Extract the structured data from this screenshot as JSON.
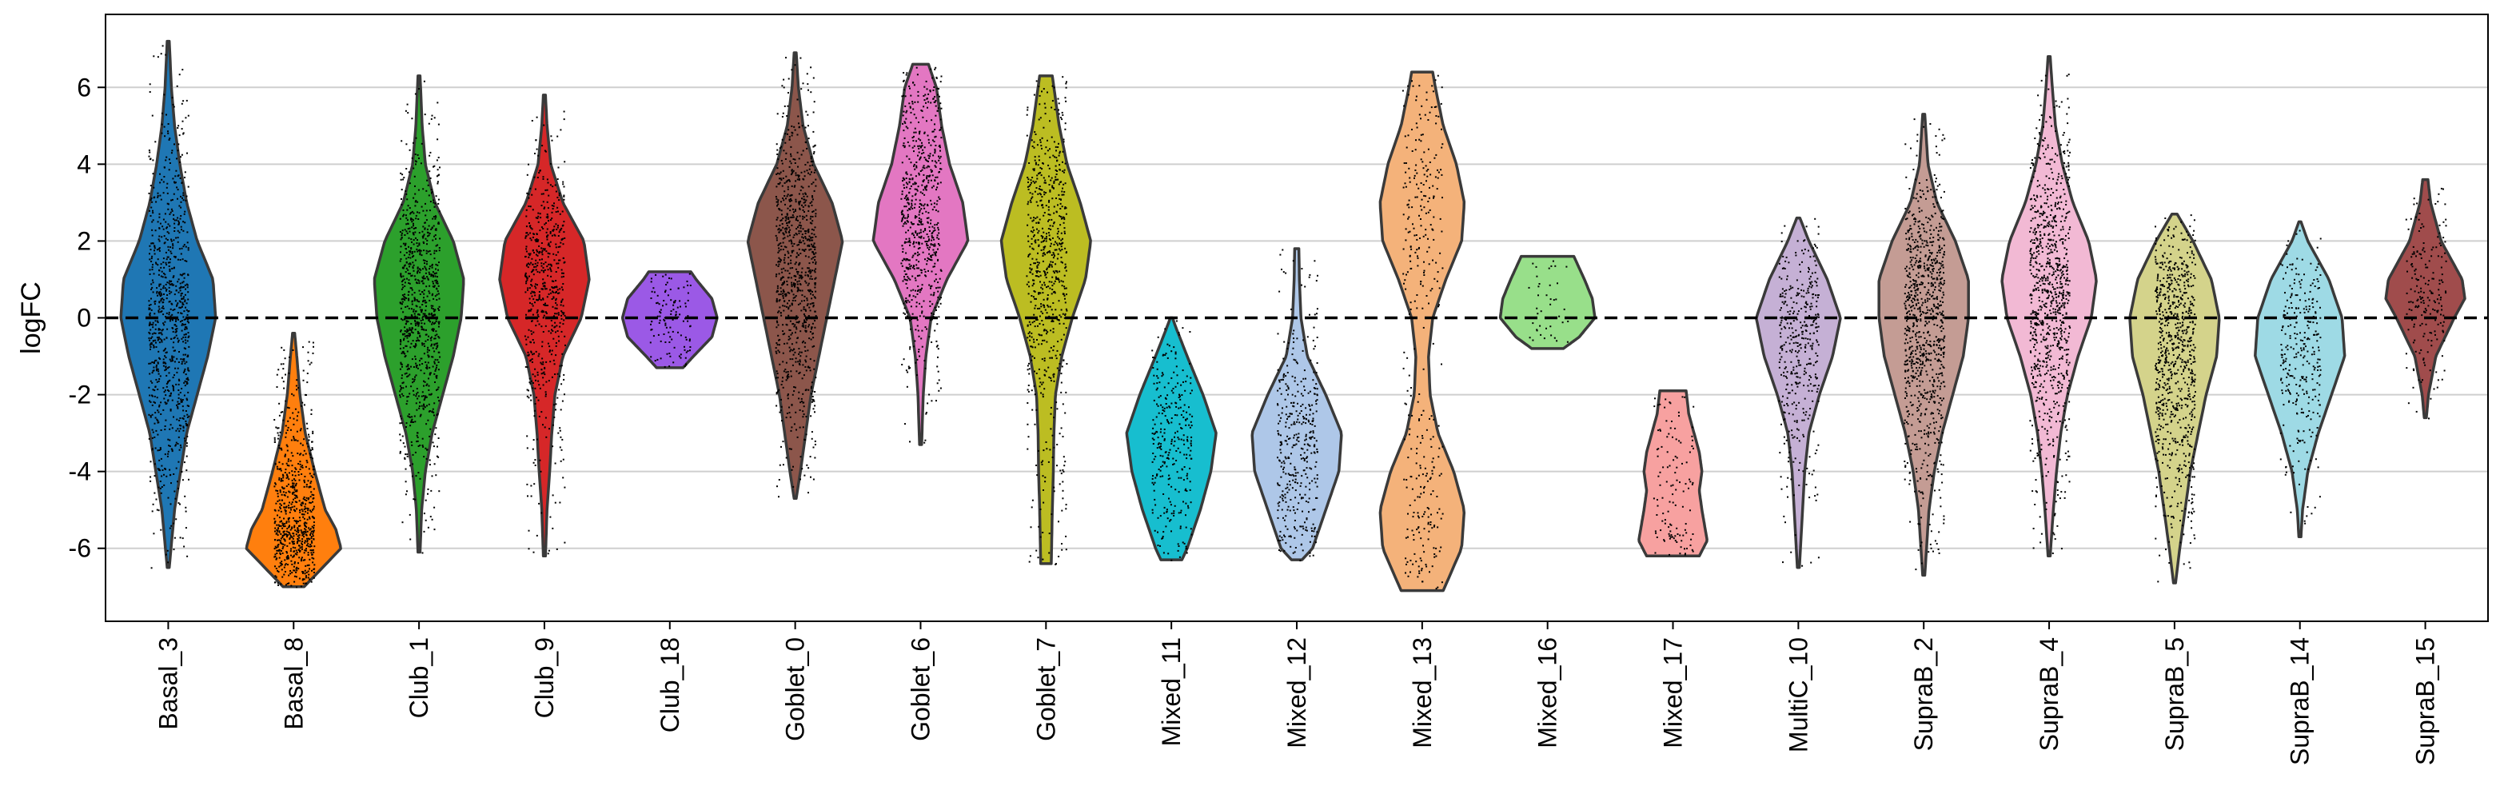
{
  "chart_data": {
    "type": "violin",
    "ylabel": "logFC",
    "ylim": [
      -7.9,
      7.9
    ],
    "yticks": [
      -6,
      -4,
      -2,
      0,
      2,
      4,
      6
    ],
    "grid": "horizontal",
    "reference_line": 0,
    "categories": [
      "Basal_3",
      "Basal_8",
      "Club_1",
      "Club_9",
      "Club_18",
      "Goblet_0",
      "Goblet_6",
      "Goblet_7",
      "Mixed_11",
      "Mixed_12",
      "Mixed_13",
      "Mixed_16",
      "Mixed_17",
      "MultiC_10",
      "SupraB_2",
      "SupraB_4",
      "SupraB_5",
      "SupraB_14",
      "SupraB_15"
    ],
    "series": [
      {
        "color": "#1f77b4",
        "min": -6.5,
        "max": 7.2,
        "width_profile": [
          [
            -6.5,
            0.02
          ],
          [
            -5,
            0.12
          ],
          [
            -3,
            0.35
          ],
          [
            -1,
            0.75
          ],
          [
            0,
            0.9
          ],
          [
            1,
            0.85
          ],
          [
            2,
            0.55
          ],
          [
            3,
            0.35
          ],
          [
            4,
            0.22
          ],
          [
            5,
            0.12
          ],
          [
            6,
            0.06
          ],
          [
            7.2,
            0.02
          ]
        ],
        "points": 900
      },
      {
        "color": "#ff7f0e",
        "min": -7.0,
        "max": -0.4,
        "width_profile": [
          [
            -7.0,
            0.2
          ],
          [
            -6.5,
            0.55
          ],
          [
            -6,
            0.9
          ],
          [
            -5.5,
            0.8
          ],
          [
            -5,
            0.6
          ],
          [
            -4,
            0.4
          ],
          [
            -3,
            0.22
          ],
          [
            -2,
            0.12
          ],
          [
            -1,
            0.06
          ],
          [
            -0.4,
            0.02
          ]
        ],
        "points": 700
      },
      {
        "color": "#2ca02c",
        "min": -6.1,
        "max": 6.3,
        "width_profile": [
          [
            -6.1,
            0.02
          ],
          [
            -5,
            0.05
          ],
          [
            -4,
            0.12
          ],
          [
            -3,
            0.25
          ],
          [
            -2,
            0.45
          ],
          [
            -1,
            0.65
          ],
          [
            0,
            0.8
          ],
          [
            1,
            0.85
          ],
          [
            2,
            0.65
          ],
          [
            3,
            0.3
          ],
          [
            4,
            0.12
          ],
          [
            5,
            0.06
          ],
          [
            6.3,
            0.02
          ]
        ],
        "points": 900
      },
      {
        "color": "#d62728",
        "min": -6.2,
        "max": 5.8,
        "width_profile": [
          [
            -6.2,
            0.02
          ],
          [
            -5,
            0.05
          ],
          [
            -4,
            0.1
          ],
          [
            -3,
            0.14
          ],
          [
            -2,
            0.2
          ],
          [
            -1,
            0.35
          ],
          [
            0,
            0.7
          ],
          [
            1,
            0.85
          ],
          [
            2,
            0.75
          ],
          [
            3,
            0.35
          ],
          [
            4,
            0.12
          ],
          [
            5,
            0.05
          ],
          [
            5.8,
            0.02
          ]
        ],
        "points": 600
      },
      {
        "color": "#9b59e6",
        "min": -1.3,
        "max": 1.2,
        "width_profile": [
          [
            -1.3,
            0.25
          ],
          [
            -1,
            0.45
          ],
          [
            -0.5,
            0.8
          ],
          [
            0,
            0.9
          ],
          [
            0.5,
            0.8
          ],
          [
            1,
            0.5
          ],
          [
            1.2,
            0.4
          ]
        ],
        "points": 120
      },
      {
        "color": "#8c564b",
        "min": -4.7,
        "max": 6.9,
        "width_profile": [
          [
            -4.7,
            0.02
          ],
          [
            -4,
            0.1
          ],
          [
            -3,
            0.2
          ],
          [
            -2,
            0.3
          ],
          [
            -1,
            0.45
          ],
          [
            0,
            0.6
          ],
          [
            1,
            0.75
          ],
          [
            2,
            0.9
          ],
          [
            3,
            0.7
          ],
          [
            4,
            0.35
          ],
          [
            5,
            0.15
          ],
          [
            6,
            0.06
          ],
          [
            6.9,
            0.02
          ]
        ],
        "points": 900
      },
      {
        "color": "#e377c2",
        "min": -3.3,
        "max": 6.6,
        "width_profile": [
          [
            -3.3,
            0.02
          ],
          [
            -2,
            0.05
          ],
          [
            -1,
            0.1
          ],
          [
            0,
            0.2
          ],
          [
            1,
            0.5
          ],
          [
            2,
            0.9
          ],
          [
            3,
            0.8
          ],
          [
            4,
            0.55
          ],
          [
            5,
            0.4
          ],
          [
            6,
            0.3
          ],
          [
            6.6,
            0.15
          ]
        ],
        "points": 700
      },
      {
        "color": "#bcbd22",
        "min": -6.4,
        "max": 6.3,
        "width_profile": [
          [
            -6.4,
            0.1
          ],
          [
            -5,
            0.12
          ],
          [
            -4,
            0.14
          ],
          [
            -3,
            0.15
          ],
          [
            -2,
            0.18
          ],
          [
            -1,
            0.3
          ],
          [
            0,
            0.5
          ],
          [
            1,
            0.75
          ],
          [
            2,
            0.85
          ],
          [
            3,
            0.65
          ],
          [
            4,
            0.4
          ],
          [
            5,
            0.25
          ],
          [
            6,
            0.15
          ],
          [
            6.3,
            0.12
          ]
        ],
        "points": 700
      },
      {
        "color": "#17becf",
        "min": -6.3,
        "max": 0.0,
        "width_profile": [
          [
            -6.3,
            0.2
          ],
          [
            -6,
            0.3
          ],
          [
            -5,
            0.55
          ],
          [
            -4,
            0.75
          ],
          [
            -3,
            0.85
          ],
          [
            -2,
            0.6
          ],
          [
            -1,
            0.3
          ],
          [
            -0.3,
            0.1
          ],
          [
            0,
            0.02
          ]
        ],
        "points": 300
      },
      {
        "color": "#aec7e8",
        "min": -6.3,
        "max": 1.8,
        "width_profile": [
          [
            -6.3,
            0.1
          ],
          [
            -6,
            0.3
          ],
          [
            -5,
            0.55
          ],
          [
            -4,
            0.8
          ],
          [
            -3,
            0.85
          ],
          [
            -2,
            0.55
          ],
          [
            -1,
            0.2
          ],
          [
            0,
            0.08
          ],
          [
            1,
            0.05
          ],
          [
            1.8,
            0.04
          ]
        ],
        "points": 400
      },
      {
        "color": "#f4b27a",
        "min": -7.1,
        "max": 6.4,
        "width_profile": [
          [
            -7.1,
            0.4
          ],
          [
            -6,
            0.75
          ],
          [
            -5,
            0.8
          ],
          [
            -4,
            0.6
          ],
          [
            -3,
            0.3
          ],
          [
            -2,
            0.15
          ],
          [
            -1,
            0.12
          ],
          [
            0,
            0.2
          ],
          [
            1,
            0.45
          ],
          [
            2,
            0.75
          ],
          [
            3,
            0.8
          ],
          [
            4,
            0.65
          ],
          [
            5,
            0.4
          ],
          [
            6,
            0.25
          ],
          [
            6.4,
            0.2
          ]
        ],
        "points": 350
      },
      {
        "color": "#98df8a",
        "min": -0.8,
        "max": 1.6,
        "width_profile": [
          [
            -0.8,
            0.3
          ],
          [
            -0.5,
            0.6
          ],
          [
            0,
            0.9
          ],
          [
            0.5,
            0.85
          ],
          [
            1,
            0.7
          ],
          [
            1.6,
            0.5
          ]
        ],
        "points": 40
      },
      {
        "color": "#f7a1a0",
        "min": -6.2,
        "max": -1.9,
        "width_profile": [
          [
            -6.2,
            0.5
          ],
          [
            -5.8,
            0.65
          ],
          [
            -5,
            0.55
          ],
          [
            -4.5,
            0.5
          ],
          [
            -4,
            0.55
          ],
          [
            -3.5,
            0.5
          ],
          [
            -3,
            0.4
          ],
          [
            -2.5,
            0.3
          ],
          [
            -1.9,
            0.25
          ]
        ],
        "points": 120
      },
      {
        "color": "#c5b0d5",
        "min": -6.5,
        "max": 2.6,
        "width_profile": [
          [
            -6.5,
            0.02
          ],
          [
            -5,
            0.08
          ],
          [
            -4,
            0.12
          ],
          [
            -3,
            0.2
          ],
          [
            -2,
            0.4
          ],
          [
            -1,
            0.65
          ],
          [
            0,
            0.8
          ],
          [
            1,
            0.55
          ],
          [
            2,
            0.2
          ],
          [
            2.6,
            0.03
          ]
        ],
        "points": 400
      },
      {
        "color": "#c49c94",
        "min": -6.7,
        "max": 5.3,
        "width_profile": [
          [
            -6.7,
            0.02
          ],
          [
            -5,
            0.1
          ],
          [
            -4,
            0.2
          ],
          [
            -3,
            0.35
          ],
          [
            -2,
            0.55
          ],
          [
            -1,
            0.75
          ],
          [
            0,
            0.85
          ],
          [
            1,
            0.85
          ],
          [
            2,
            0.6
          ],
          [
            3,
            0.25
          ],
          [
            4,
            0.08
          ],
          [
            5.3,
            0.02
          ]
        ],
        "points": 900
      },
      {
        "color": "#f2b9d4",
        "min": -6.2,
        "max": 6.8,
        "width_profile": [
          [
            -6.2,
            0.02
          ],
          [
            -5,
            0.08
          ],
          [
            -4,
            0.14
          ],
          [
            -3,
            0.22
          ],
          [
            -2,
            0.35
          ],
          [
            -1,
            0.55
          ],
          [
            0,
            0.8
          ],
          [
            1,
            0.9
          ],
          [
            2,
            0.75
          ],
          [
            3,
            0.45
          ],
          [
            4,
            0.25
          ],
          [
            5,
            0.12
          ],
          [
            6,
            0.06
          ],
          [
            6.8,
            0.02
          ]
        ],
        "points": 900
      },
      {
        "color": "#d4d38b",
        "min": -6.9,
        "max": 2.7,
        "width_profile": [
          [
            -6.9,
            0.02
          ],
          [
            -6,
            0.1
          ],
          [
            -5,
            0.2
          ],
          [
            -4,
            0.3
          ],
          [
            -3,
            0.45
          ],
          [
            -2,
            0.6
          ],
          [
            -1,
            0.8
          ],
          [
            0,
            0.85
          ],
          [
            1,
            0.7
          ],
          [
            2,
            0.35
          ],
          [
            2.7,
            0.05
          ]
        ],
        "points": 800
      },
      {
        "color": "#9edae5",
        "min": -5.7,
        "max": 2.5,
        "width_profile": [
          [
            -5.7,
            0.02
          ],
          [
            -5,
            0.05
          ],
          [
            -4,
            0.15
          ],
          [
            -3,
            0.35
          ],
          [
            -2,
            0.6
          ],
          [
            -1,
            0.85
          ],
          [
            0,
            0.8
          ],
          [
            1,
            0.55
          ],
          [
            2,
            0.15
          ],
          [
            2.5,
            0.02
          ]
        ],
        "points": 300
      },
      {
        "color": "#a04c4c",
        "min": -2.6,
        "max": 3.6,
        "width_profile": [
          [
            -2.6,
            0.02
          ],
          [
            -2,
            0.06
          ],
          [
            -1,
            0.2
          ],
          [
            0,
            0.55
          ],
          [
            0.5,
            0.75
          ],
          [
            1,
            0.7
          ],
          [
            2,
            0.3
          ],
          [
            3,
            0.1
          ],
          [
            3.6,
            0.05
          ]
        ],
        "points": 200
      }
    ]
  }
}
